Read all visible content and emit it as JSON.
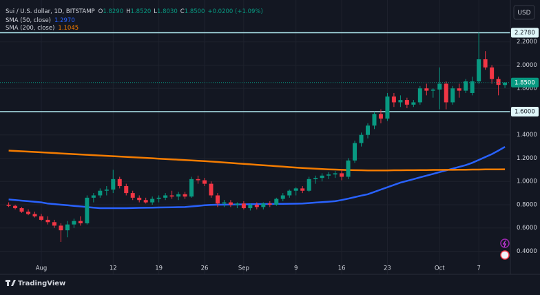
{
  "chart_data": {
    "type": "candlestick",
    "header": {
      "symbol": "Sui / U.S. dollar, 1D, BITSTAMP",
      "ohlc": [
        {
          "key": "O",
          "value": "1.8290"
        },
        {
          "key": "H",
          "value": "1.8520"
        },
        {
          "key": "L",
          "value": "1.8030"
        },
        {
          "key": "C",
          "value": "1.8500"
        }
      ],
      "change": "+0.0200 (+1.09%)"
    },
    "currency": "USD",
    "brand": "TradingView",
    "categories": [
      null,
      null,
      null,
      null,
      null,
      "Aug",
      null,
      null,
      null,
      null,
      null,
      null,
      null,
      null,
      null,
      null,
      "12",
      null,
      null,
      null,
      null,
      null,
      null,
      "19",
      null,
      null,
      null,
      null,
      null,
      null,
      "26",
      null,
      null,
      null,
      null,
      null,
      "Sep",
      null,
      null,
      null,
      null,
      null,
      null,
      null,
      "9",
      null,
      null,
      null,
      null,
      null,
      null,
      "16",
      null,
      null,
      null,
      null,
      null,
      null,
      "23",
      null,
      null,
      null,
      null,
      null,
      null,
      null,
      "Oct",
      null,
      null,
      null,
      null,
      null,
      "7",
      null,
      null,
      null,
      null
    ],
    "open": [
      0.8,
      0.79,
      0.77,
      0.74,
      0.72,
      0.7,
      0.67,
      0.65,
      0.62,
      0.58,
      0.63,
      0.66,
      0.64,
      0.86,
      0.88,
      0.92,
      0.93,
      1.02,
      0.96,
      0.9,
      0.86,
      0.84,
      0.82,
      0.85,
      0.86,
      0.88,
      0.87,
      0.89,
      0.87,
      1.02,
      1.01,
      0.98,
      0.88,
      0.81,
      0.82,
      0.8,
      0.81,
      0.77,
      0.8,
      0.78,
      0.81,
      0.8,
      0.85,
      0.88,
      0.92,
      0.94,
      0.92,
      1.02,
      1.03,
      1.05,
      1.06,
      1.07,
      1.04,
      1.18,
      1.33,
      1.4,
      1.48,
      1.58,
      1.54,
      1.73,
      1.68,
      1.7,
      1.66,
      1.68,
      1.8,
      1.78,
      1.79,
      1.84,
      1.68,
      1.8,
      1.78,
      1.76,
      1.86,
      2.05,
      1.98,
      1.88,
      1.829
    ],
    "high": [
      0.82,
      0.8,
      0.78,
      0.76,
      0.74,
      0.72,
      0.7,
      0.67,
      0.64,
      0.66,
      0.68,
      0.7,
      0.88,
      0.9,
      0.94,
      0.96,
      1.1,
      1.04,
      0.98,
      0.92,
      0.88,
      0.86,
      0.87,
      0.88,
      0.9,
      0.92,
      0.91,
      0.91,
      1.04,
      1.05,
      1.03,
      1.0,
      0.9,
      0.84,
      0.84,
      0.82,
      0.83,
      0.81,
      0.82,
      0.82,
      0.83,
      0.86,
      0.9,
      0.93,
      0.95,
      0.96,
      1.04,
      1.05,
      1.07,
      1.08,
      1.09,
      1.1,
      1.2,
      1.35,
      1.42,
      1.5,
      1.6,
      1.62,
      1.76,
      1.76,
      1.74,
      1.72,
      1.7,
      1.82,
      1.84,
      1.8,
      1.98,
      1.86,
      1.82,
      1.84,
      1.88,
      1.9,
      2.28,
      2.12,
      2.0,
      1.9,
      1.852
    ],
    "low": [
      0.78,
      0.76,
      0.73,
      0.71,
      0.69,
      0.66,
      0.63,
      0.6,
      0.48,
      0.52,
      0.6,
      0.62,
      0.63,
      0.82,
      0.86,
      0.88,
      0.9,
      0.94,
      0.88,
      0.84,
      0.82,
      0.81,
      0.8,
      0.82,
      0.84,
      0.85,
      0.84,
      0.85,
      0.86,
      0.98,
      0.96,
      0.86,
      0.78,
      0.78,
      0.78,
      0.77,
      0.76,
      0.75,
      0.76,
      0.76,
      0.78,
      0.79,
      0.83,
      0.86,
      0.88,
      0.9,
      0.91,
      0.98,
      1.0,
      1.02,
      1.03,
      1.01,
      1.02,
      1.16,
      1.3,
      1.37,
      1.45,
      1.5,
      1.52,
      1.64,
      1.64,
      1.63,
      1.64,
      1.66,
      1.74,
      1.72,
      1.62,
      1.62,
      1.66,
      1.72,
      1.76,
      1.74,
      1.84,
      1.96,
      1.84,
      1.74,
      1.803
    ],
    "close": [
      0.79,
      0.77,
      0.74,
      0.72,
      0.7,
      0.67,
      0.65,
      0.62,
      0.58,
      0.63,
      0.66,
      0.64,
      0.86,
      0.88,
      0.92,
      0.93,
      1.02,
      0.96,
      0.9,
      0.86,
      0.84,
      0.82,
      0.85,
      0.86,
      0.88,
      0.87,
      0.89,
      0.87,
      1.02,
      1.01,
      0.98,
      0.88,
      0.81,
      0.82,
      0.8,
      0.81,
      0.77,
      0.8,
      0.78,
      0.81,
      0.8,
      0.85,
      0.88,
      0.92,
      0.94,
      0.92,
      1.02,
      1.03,
      1.05,
      1.06,
      1.07,
      1.04,
      1.18,
      1.33,
      1.4,
      1.48,
      1.58,
      1.54,
      1.73,
      1.68,
      1.7,
      1.66,
      1.68,
      1.8,
      1.78,
      1.79,
      1.84,
      1.68,
      1.8,
      1.78,
      1.86,
      1.86,
      2.05,
      1.98,
      1.88,
      1.83,
      1.85
    ],
    "up_color": "#089981",
    "down_color": "#f23645",
    "indicators": [
      {
        "name": "SMA (50, close)",
        "value_label": "1.2970",
        "color": "#2962ff",
        "values": [
          0.845,
          0.84,
          0.835,
          0.83,
          0.825,
          0.82,
          0.81,
          0.805,
          0.8,
          0.795,
          0.79,
          0.785,
          0.78,
          0.775,
          0.77,
          0.77,
          0.77,
          0.77,
          0.77,
          0.772,
          0.773,
          0.774,
          0.775,
          0.776,
          0.777,
          0.778,
          0.779,
          0.78,
          0.785,
          0.79,
          0.795,
          0.798,
          0.8,
          0.8,
          0.801,
          0.802,
          0.803,
          0.804,
          0.805,
          0.806,
          0.806,
          0.807,
          0.807,
          0.808,
          0.809,
          0.81,
          0.814,
          0.818,
          0.822,
          0.826,
          0.83,
          0.84,
          0.852,
          0.865,
          0.878,
          0.89,
          0.91,
          0.93,
          0.95,
          0.97,
          0.99,
          1.005,
          1.02,
          1.035,
          1.05,
          1.065,
          1.08,
          1.095,
          1.11,
          1.125,
          1.14,
          1.16,
          1.185,
          1.21,
          1.235,
          1.265,
          1.297
        ]
      },
      {
        "name": "SMA (200, close)",
        "value_label": "1.1045",
        "color": "#f57c00",
        "values": [
          1.265,
          1.262,
          1.259,
          1.256,
          1.253,
          1.25,
          1.247,
          1.244,
          1.241,
          1.238,
          1.235,
          1.232,
          1.229,
          1.226,
          1.223,
          1.22,
          1.217,
          1.214,
          1.211,
          1.208,
          1.205,
          1.202,
          1.199,
          1.196,
          1.193,
          1.19,
          1.187,
          1.184,
          1.181,
          1.178,
          1.175,
          1.171,
          1.167,
          1.163,
          1.159,
          1.155,
          1.151,
          1.147,
          1.143,
          1.139,
          1.135,
          1.131,
          1.127,
          1.123,
          1.119,
          1.115,
          1.112,
          1.109,
          1.106,
          1.104,
          1.102,
          1.1,
          1.098,
          1.097,
          1.096,
          1.095,
          1.095,
          1.095,
          1.095,
          1.096,
          1.096,
          1.097,
          1.097,
          1.098,
          1.098,
          1.099,
          1.099,
          1.1,
          1.1,
          1.101,
          1.101,
          1.102,
          1.102,
          1.103,
          1.103,
          1.104,
          1.1045
        ]
      }
    ],
    "levels": [
      {
        "value": 2.278,
        "label": "2.2780"
      },
      {
        "value": 1.6,
        "label": "1.6000"
      }
    ],
    "last_price": {
      "value": 1.85,
      "label": "1.8500"
    },
    "ylim": [
      0.32,
      2.53
    ],
    "yticks": [
      {
        "value": 0.4,
        "label": "0.4000"
      },
      {
        "value": 0.6,
        "label": "0.6000"
      },
      {
        "value": 0.8,
        "label": "0.8000"
      },
      {
        "value": 1.0,
        "label": "1.0000"
      },
      {
        "value": 1.2,
        "label": "1.2000"
      },
      {
        "value": 1.4,
        "label": "1.4000"
      },
      {
        "value": 1.6,
        "label": "1.6000"
      },
      {
        "value": 1.8,
        "label": "1.8000"
      },
      {
        "value": 2.0,
        "label": "2.0000"
      },
      {
        "value": 2.2,
        "label": "2.2000"
      }
    ],
    "grid": true
  }
}
